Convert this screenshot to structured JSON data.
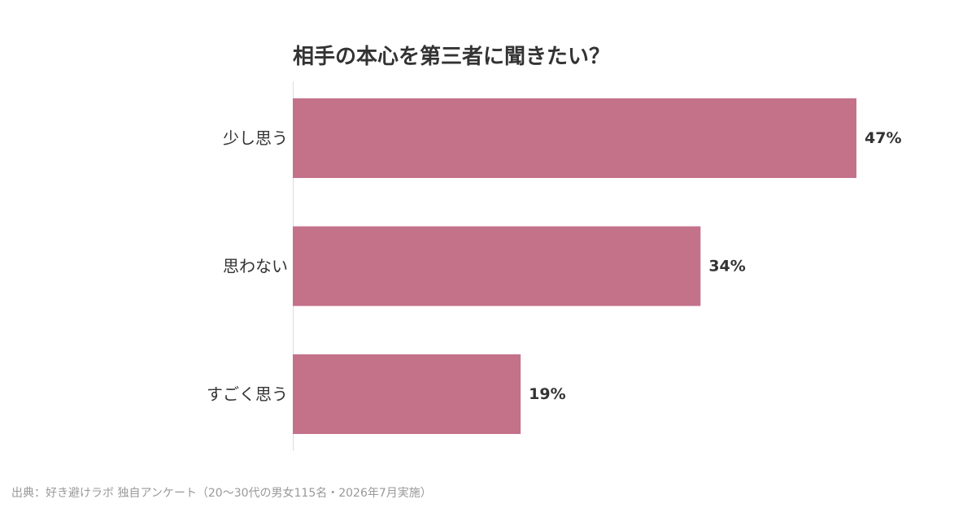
{
  "chart_data": {
    "type": "bar",
    "orientation": "horizontal",
    "title": "相手の本心を第三者に聞きたい？",
    "categories": [
      "少し思う",
      "思わない",
      "すごく思う"
    ],
    "values": [
      47,
      34,
      19
    ],
    "value_labels": [
      "47%",
      "34%",
      "19%"
    ],
    "unit": "%",
    "xlim": [
      0,
      50
    ],
    "grid": false,
    "legend": "none",
    "bar_color": "#c4718a"
  },
  "source": "出典：好き避けラボ 独自アンケート（20〜30代の男女115名・2026年7月実施）"
}
